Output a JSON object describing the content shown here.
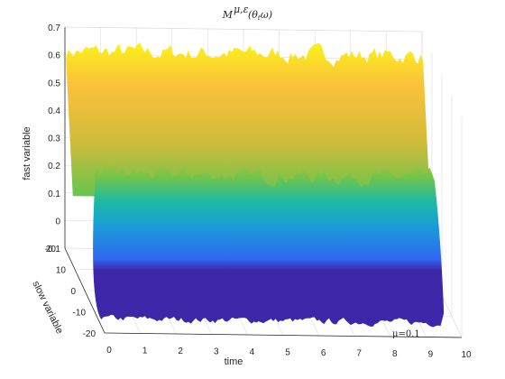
{
  "chart_data": {
    "type": "surface",
    "title_main": "M",
    "title_sup": "μ,ε",
    "title_arg": "(θ",
    "title_sub": "t",
    "title_tail": "ω)",
    "xlabel": "time",
    "ylabel": "slow variable",
    "zlabel": "fast variable",
    "x_ticks": [
      "0",
      "1",
      "2",
      "3",
      "4",
      "5",
      "6",
      "7",
      "8",
      "9",
      "10"
    ],
    "y_ticks": [
      "20",
      "10",
      "0",
      "-10",
      "-20"
    ],
    "z_ticks": [
      "0.7",
      "0.6",
      "0.5",
      "0.4",
      "0.3",
      "0.2",
      "0.1",
      "0",
      "-0.1"
    ],
    "xlim": [
      0,
      10
    ],
    "ylim": [
      -20,
      20
    ],
    "zlim": [
      -0.1,
      0.7
    ],
    "annotation": "μ=0.1",
    "surface": {
      "back_ridge_height": 0.62,
      "front_ridge_height": 0.31,
      "trough_height": -0.17,
      "colormap": [
        "#3e26a8",
        "#2f67f0",
        "#1a9bd8",
        "#1ebaa4",
        "#73c44a",
        "#d1bb3a",
        "#fcc23a",
        "#f9fb14"
      ]
    }
  }
}
